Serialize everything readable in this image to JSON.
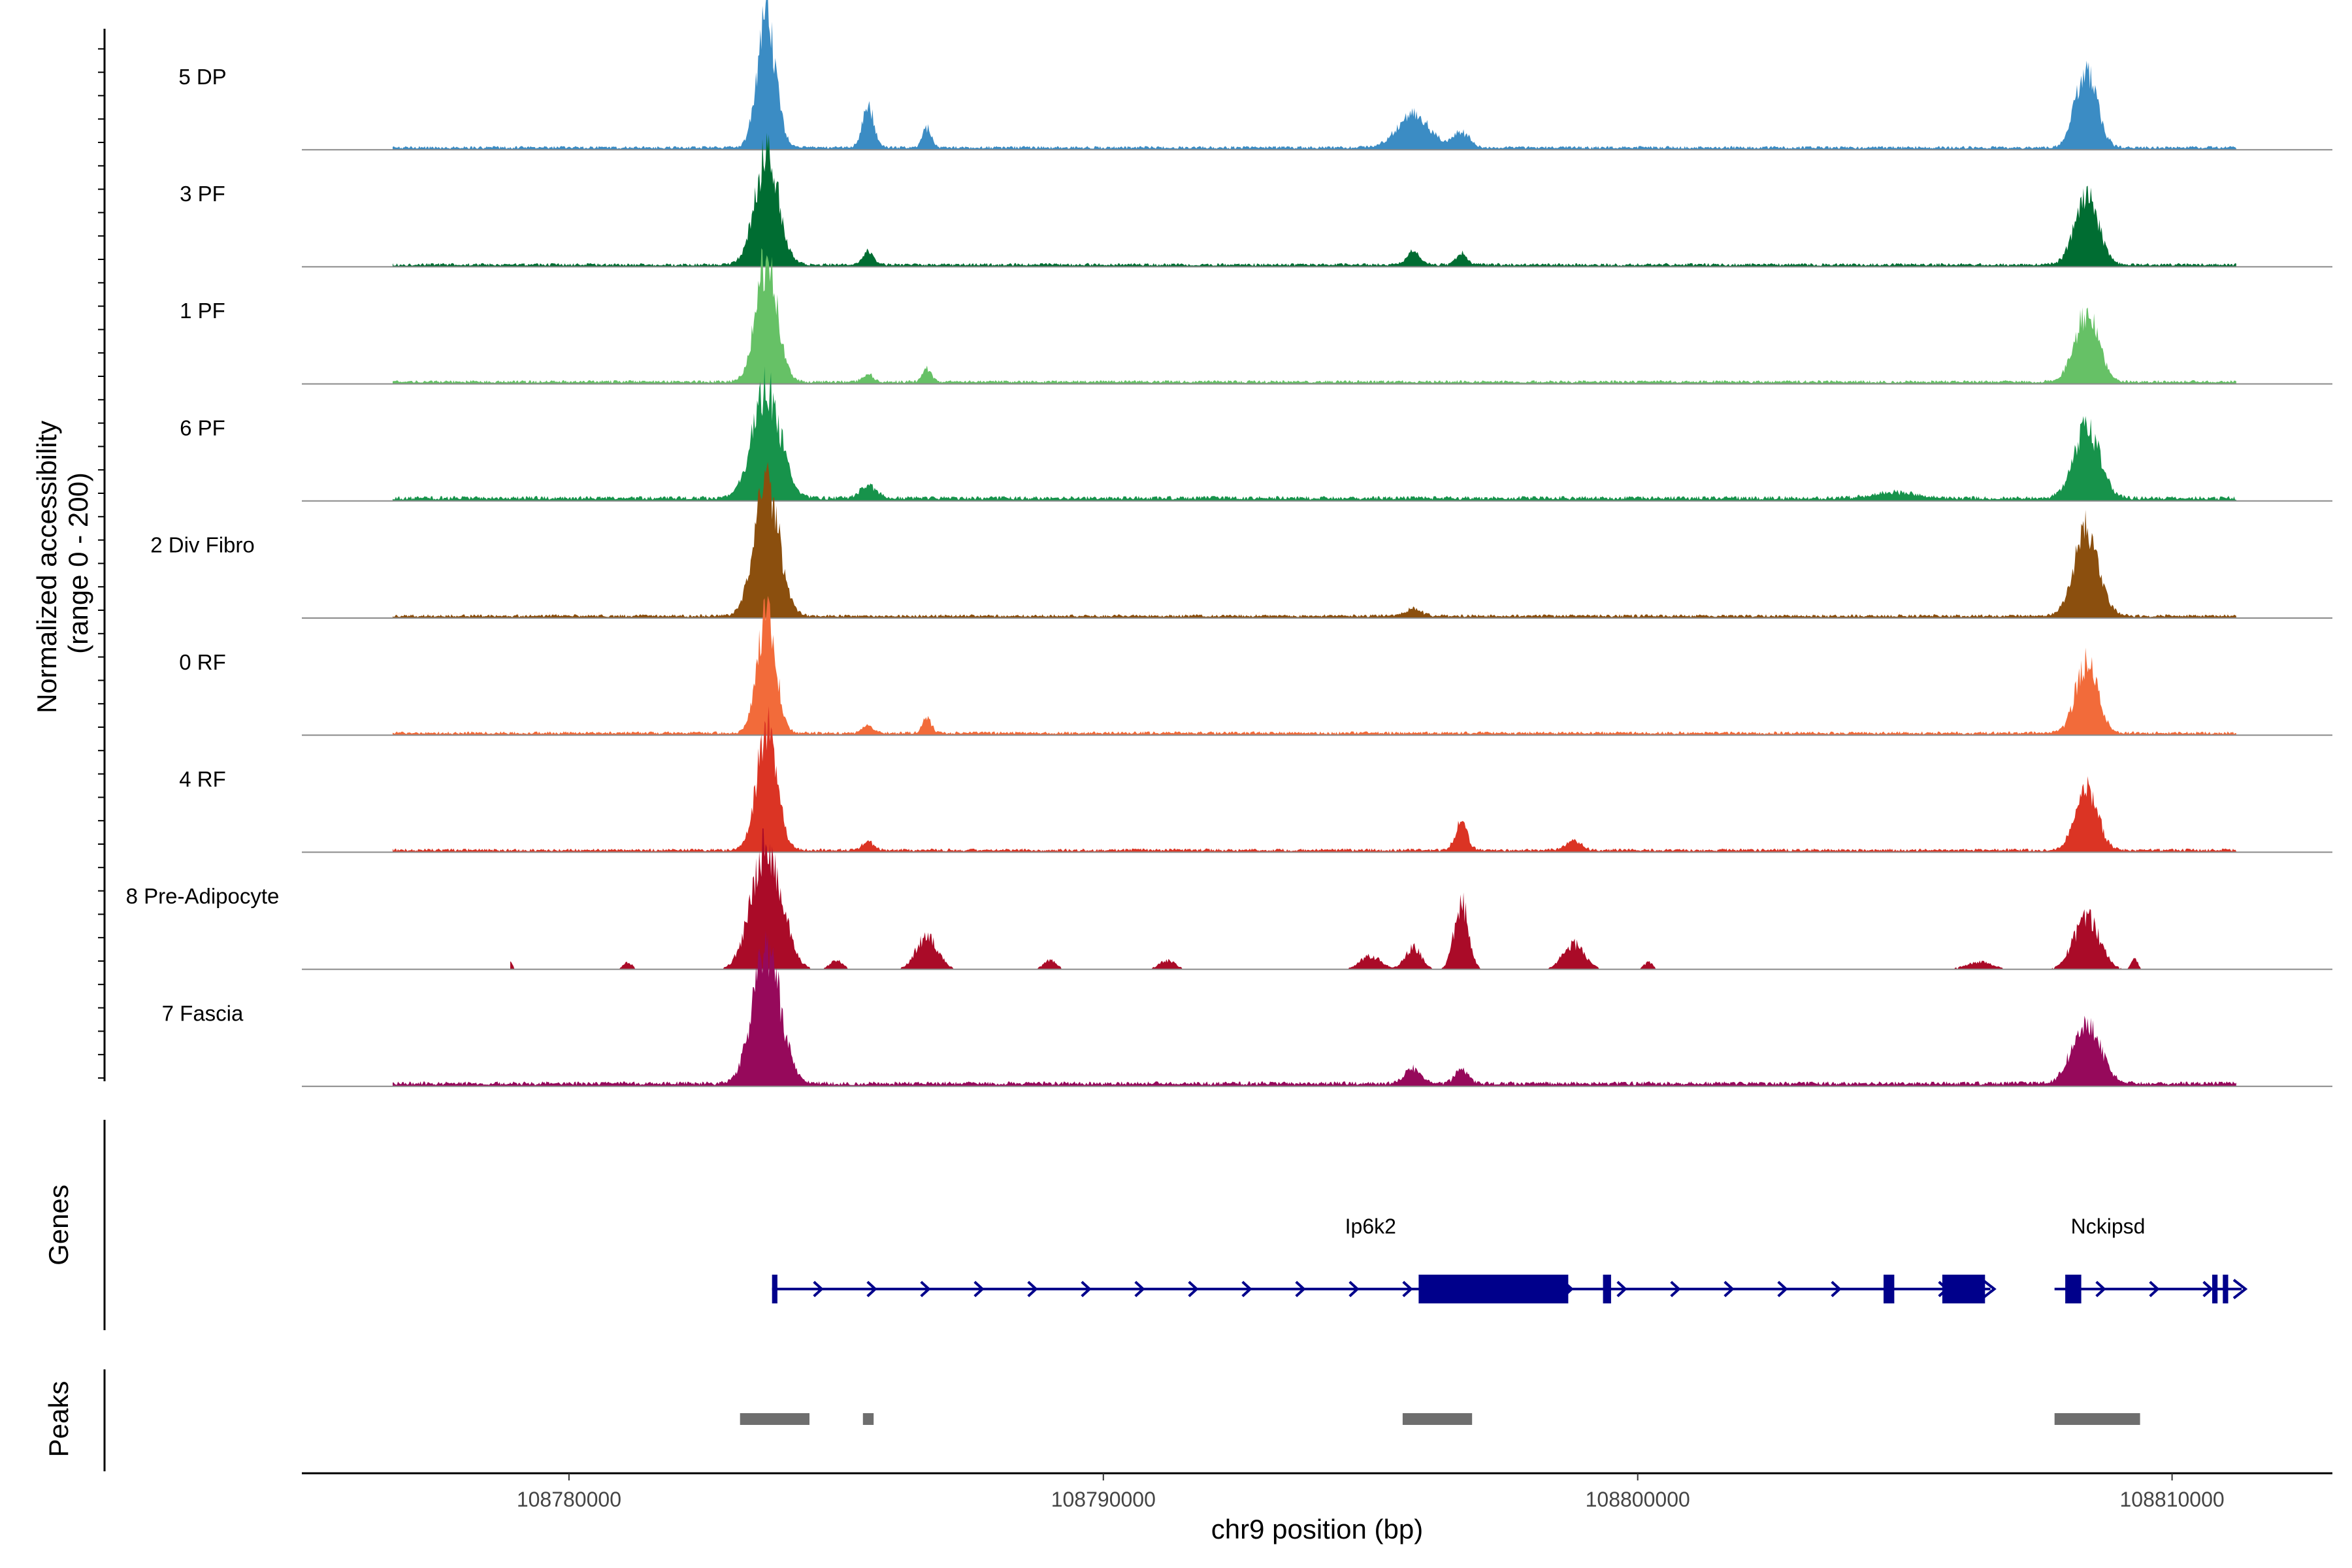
{
  "chart_data": {
    "type": "area",
    "title": "",
    "ylabel_line1": "Normalized accessibility",
    "ylabel_line2": "(range 0 - 200)",
    "xlabel": "chr9 position (bp)",
    "genes_label": "Genes",
    "peaks_label": "Peaks",
    "xlim": [
      108775000,
      108813000
    ],
    "x_ticks": [
      108780000,
      108790000,
      108800000,
      108810000
    ],
    "x_tick_labels": [
      "108780000",
      "108790000",
      "108800000",
      "108810000"
    ],
    "ylim": [
      0,
      200
    ],
    "tracks": [
      {
        "name": "5 DP",
        "color": "#3B8CC4",
        "base": 3,
        "extent": [
          108776700,
          108811200
        ],
        "peaks": [
          [
            108783700,
            180,
            170
          ],
          [
            108785600,
            55,
            110
          ],
          [
            108786700,
            28,
            80
          ],
          [
            108795800,
            45,
            300
          ],
          [
            108796700,
            22,
            150
          ],
          [
            108808400,
            110,
            200
          ]
        ]
      },
      {
        "name": "3 PF",
        "color": "#006D32",
        "base": 3,
        "extent": [
          108776700,
          108811200
        ],
        "peaks": [
          [
            108783700,
            150,
            220
          ],
          [
            108785600,
            18,
            100
          ],
          [
            108795800,
            18,
            120
          ],
          [
            108796700,
            15,
            100
          ],
          [
            108808400,
            95,
            220
          ]
        ]
      },
      {
        "name": "1 PF",
        "color": "#66C166",
        "base": 3,
        "extent": [
          108776700,
          108811200
        ],
        "peaks": [
          [
            108783700,
            170,
            200
          ],
          [
            108785600,
            10,
            100
          ],
          [
            108786700,
            18,
            80
          ],
          [
            108808400,
            95,
            220
          ]
        ]
      },
      {
        "name": "6 PF",
        "color": "#17934B",
        "base": 4,
        "extent": [
          108776700,
          108811200
        ],
        "peaks": [
          [
            108783700,
            150,
            260
          ],
          [
            108785600,
            18,
            150
          ],
          [
            108804800,
            8,
            400
          ],
          [
            108808400,
            100,
            240
          ]
        ]
      },
      {
        "name": "2 Div Fibro",
        "color": "#8B4F0E",
        "base": 3,
        "extent": [
          108776700,
          108811200
        ],
        "peaks": [
          [
            108783700,
            180,
            230
          ],
          [
            108795800,
            10,
            150
          ],
          [
            108808400,
            120,
            230
          ]
        ]
      },
      {
        "name": "0 RF",
        "color": "#F26B3A",
        "base": 3,
        "extent": [
          108776700,
          108811200
        ],
        "peaks": [
          [
            108783700,
            170,
            170
          ],
          [
            108785600,
            10,
            100
          ],
          [
            108786700,
            22,
            80
          ],
          [
            108808400,
            100,
            200
          ]
        ]
      },
      {
        "name": "4 RF",
        "color": "#DB3424",
        "base": 3,
        "extent": [
          108776700,
          108811200
        ],
        "peaks": [
          [
            108783700,
            165,
            190
          ],
          [
            108785600,
            12,
            100
          ],
          [
            108796700,
            38,
            110
          ],
          [
            108798800,
            12,
            150
          ],
          [
            108808400,
            90,
            200
          ]
        ]
      },
      {
        "name": "8 Pre-Adipocyte",
        "color": "#AA0B28",
        "base": 0,
        "extent": [
          108778900,
          108809500
        ],
        "peaks": [
          [
            108778900,
            12,
            40
          ],
          [
            108781100,
            10,
            80
          ],
          [
            108783700,
            170,
            280
          ],
          [
            108785000,
            12,
            120
          ],
          [
            108786700,
            45,
            200
          ],
          [
            108789000,
            12,
            120
          ],
          [
            108791200,
            12,
            150
          ],
          [
            108795000,
            18,
            200
          ],
          [
            108795800,
            30,
            150
          ],
          [
            108796700,
            95,
            130
          ],
          [
            108798800,
            35,
            200
          ],
          [
            108800200,
            10,
            80
          ],
          [
            108806400,
            10,
            250
          ],
          [
            108808400,
            70,
            240
          ],
          [
            108809300,
            14,
            60
          ]
        ]
      },
      {
        "name": "7 Fascia",
        "color": "#96095B",
        "base": 4,
        "extent": [
          108776700,
          108811200
        ],
        "peaks": [
          [
            108783700,
            180,
            260
          ],
          [
            108795800,
            22,
            150
          ],
          [
            108796700,
            20,
            120
          ],
          [
            108808400,
            85,
            260
          ]
        ]
      }
    ],
    "genes": [
      {
        "name": "Ip6k2",
        "start": 108783800,
        "end": 108806600,
        "label_x": 108795000,
        "exons": [
          [
            108783800,
            108783900
          ],
          [
            108795900,
            108798700
          ],
          [
            108799350,
            108799500
          ],
          [
            108804600,
            108804800
          ],
          [
            108805700,
            108806500
          ]
        ]
      },
      {
        "name": "Nckipsd",
        "start": 108807800,
        "end": 108811300,
        "label_x": 108808800,
        "exons": [
          [
            108808000,
            108808300
          ],
          [
            108810750,
            108810850
          ],
          [
            108810950,
            108811050
          ]
        ]
      }
    ],
    "peak_regions": [
      [
        108783200,
        108784500
      ],
      [
        108785500,
        108785700
      ],
      [
        108795600,
        108796900
      ],
      [
        108807800,
        108809400
      ]
    ]
  }
}
